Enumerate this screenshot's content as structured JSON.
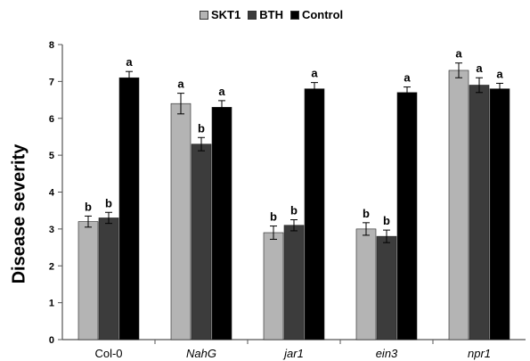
{
  "chart_data": {
    "type": "bar",
    "ylabel": "Disease severity",
    "xlabel": "",
    "ylim": [
      0,
      8
    ],
    "yticks": [
      "0",
      "1",
      "2",
      "3",
      "4",
      "5",
      "6",
      "7",
      "8"
    ],
    "categories": [
      "Col-0",
      "NahG",
      "jar1",
      "ein3",
      "npr1"
    ],
    "category_italic": [
      false,
      true,
      true,
      true,
      true
    ],
    "legend_position": "top",
    "grid": false,
    "series": [
      {
        "name": "SKT1",
        "color": "#b4b4b4",
        "values": [
          3.2,
          6.4,
          2.9,
          3.0,
          7.3
        ],
        "errors": [
          0.15,
          0.28,
          0.18,
          0.17,
          0.2
        ],
        "labels": [
          "b",
          "a",
          "b",
          "b",
          "a"
        ]
      },
      {
        "name": "BTH",
        "color": "#3c3c3c",
        "values": [
          3.3,
          5.3,
          3.1,
          2.8,
          6.9
        ],
        "errors": [
          0.15,
          0.18,
          0.15,
          0.17,
          0.2
        ],
        "labels": [
          "b",
          "b",
          "b",
          "b",
          "a"
        ]
      },
      {
        "name": "Control",
        "color": "#000000",
        "values": [
          7.1,
          6.3,
          6.8,
          6.7,
          6.8
        ],
        "errors": [
          0.17,
          0.18,
          0.17,
          0.15,
          0.15
        ],
        "labels": [
          "a",
          "a",
          "a",
          "a",
          "a"
        ]
      }
    ]
  }
}
